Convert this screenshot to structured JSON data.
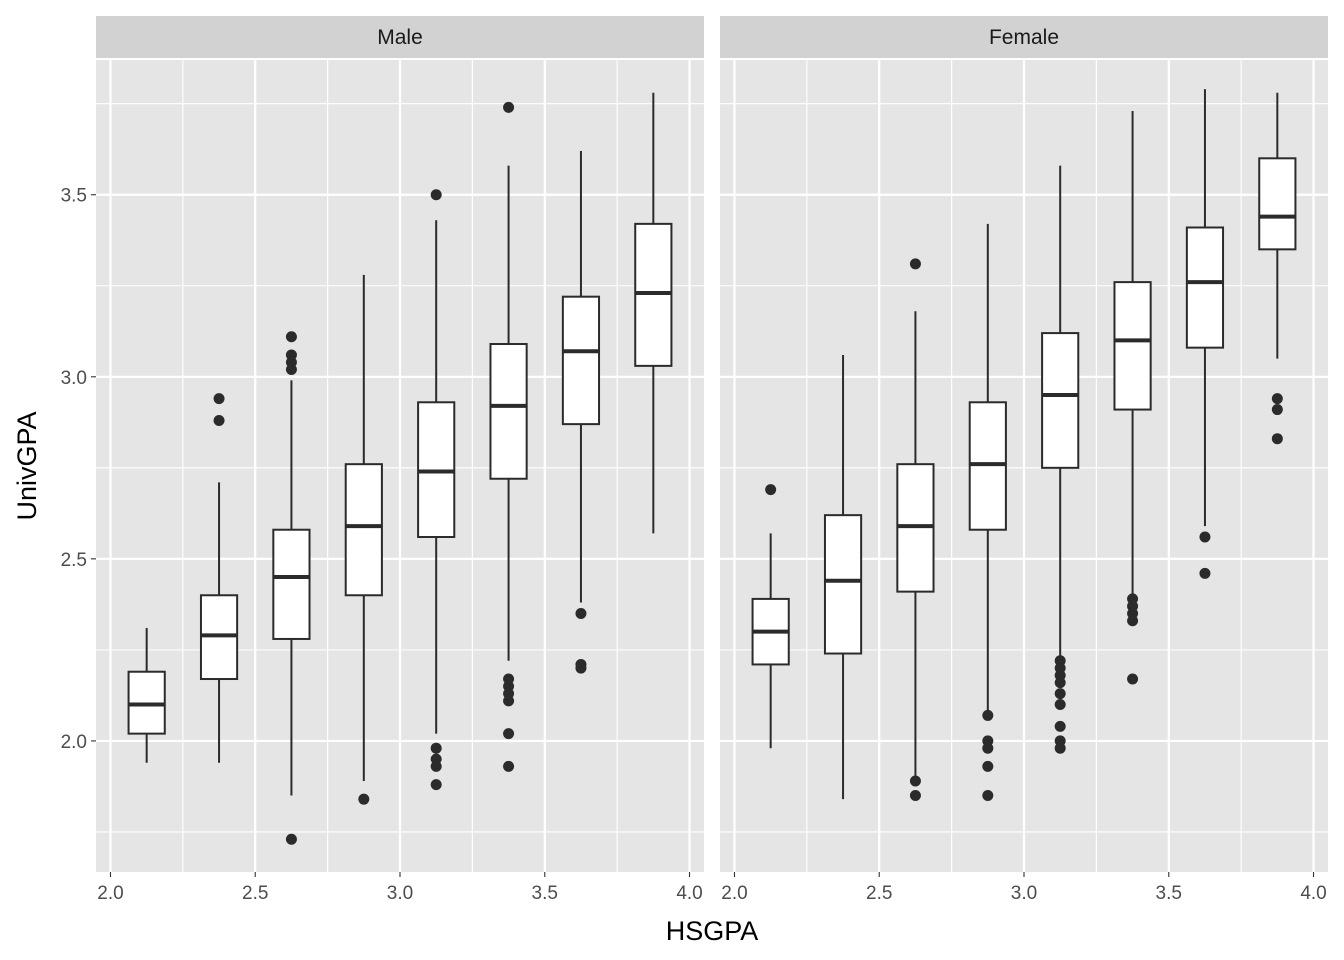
{
  "chart_data": {
    "type": "boxplot",
    "xlabel": "HSGPA",
    "ylabel": "UnivGPA",
    "xlim": [
      1.95,
      4.05
    ],
    "ylim": [
      1.64,
      3.87
    ],
    "x_ticks": [
      2.0,
      2.5,
      3.0,
      3.5,
      4.0
    ],
    "x_tick_labels": [
      "2.0",
      "2.5",
      "3.0",
      "3.5",
      "4.0"
    ],
    "y_ticks": [
      2.0,
      2.5,
      3.0,
      3.5
    ],
    "y_tick_labels": [
      "2.0",
      "2.5",
      "3.0",
      "3.5"
    ],
    "grid": true,
    "colors": {
      "panel_bg": "#e5e5e5",
      "strip_bg": "#d2d2d2",
      "grid": "#ffffff",
      "box_fill": "#ffffff",
      "box_line": "#2b2b2b"
    },
    "facets": [
      {
        "label": "Male",
        "boxes": [
          {
            "x": 2.125,
            "lower_whisker": 1.94,
            "q1": 2.02,
            "median": 2.1,
            "q3": 2.19,
            "upper_whisker": 2.31,
            "outliers": []
          },
          {
            "x": 2.375,
            "lower_whisker": 1.94,
            "q1": 2.17,
            "median": 2.29,
            "q3": 2.4,
            "upper_whisker": 2.71,
            "outliers": [
              2.94,
              2.88
            ]
          },
          {
            "x": 2.625,
            "lower_whisker": 1.85,
            "q1": 2.28,
            "median": 2.45,
            "q3": 2.58,
            "upper_whisker": 2.99,
            "outliers": [
              3.11,
              3.06,
              3.04,
              3.02,
              1.73
            ]
          },
          {
            "x": 2.875,
            "lower_whisker": 1.89,
            "q1": 2.4,
            "median": 2.59,
            "q3": 2.76,
            "upper_whisker": 3.28,
            "outliers": [
              1.84
            ]
          },
          {
            "x": 3.125,
            "lower_whisker": 2.02,
            "q1": 2.56,
            "median": 2.74,
            "q3": 2.93,
            "upper_whisker": 3.43,
            "outliers": [
              3.5,
              1.98,
              1.95,
              1.93,
              1.88
            ]
          },
          {
            "x": 3.375,
            "lower_whisker": 2.22,
            "q1": 2.72,
            "median": 2.92,
            "q3": 3.09,
            "upper_whisker": 3.58,
            "outliers": [
              3.74,
              2.17,
              2.15,
              2.13,
              2.11,
              2.02,
              1.93
            ]
          },
          {
            "x": 3.625,
            "lower_whisker": 2.38,
            "q1": 2.87,
            "median": 3.07,
            "q3": 3.22,
            "upper_whisker": 3.62,
            "outliers": [
              2.35,
              2.21,
              2.2
            ]
          },
          {
            "x": 3.875,
            "lower_whisker": 2.57,
            "q1": 3.03,
            "median": 3.23,
            "q3": 3.42,
            "upper_whisker": 3.78,
            "outliers": []
          }
        ]
      },
      {
        "label": "Female",
        "boxes": [
          {
            "x": 2.125,
            "lower_whisker": 1.98,
            "q1": 2.21,
            "median": 2.3,
            "q3": 2.39,
            "upper_whisker": 2.57,
            "outliers": [
              2.69
            ]
          },
          {
            "x": 2.375,
            "lower_whisker": 1.84,
            "q1": 2.24,
            "median": 2.44,
            "q3": 2.62,
            "upper_whisker": 3.06,
            "outliers": []
          },
          {
            "x": 2.625,
            "lower_whisker": 1.9,
            "q1": 2.41,
            "median": 2.59,
            "q3": 2.76,
            "upper_whisker": 3.18,
            "outliers": [
              3.31,
              1.89,
              1.85
            ]
          },
          {
            "x": 2.875,
            "lower_whisker": 2.08,
            "q1": 2.58,
            "median": 2.76,
            "q3": 2.93,
            "upper_whisker": 3.42,
            "outliers": [
              2.07,
              2.0,
              1.98,
              1.93,
              1.85
            ]
          },
          {
            "x": 3.125,
            "lower_whisker": 2.22,
            "q1": 2.75,
            "median": 2.95,
            "q3": 3.12,
            "upper_whisker": 3.58,
            "outliers": [
              2.22,
              2.2,
              2.18,
              2.16,
              2.13,
              2.1,
              2.04,
              2.0,
              1.98
            ]
          },
          {
            "x": 3.375,
            "lower_whisker": 2.4,
            "q1": 2.91,
            "median": 3.1,
            "q3": 3.26,
            "upper_whisker": 3.73,
            "outliers": [
              2.39,
              2.37,
              2.35,
              2.33,
              2.17
            ]
          },
          {
            "x": 3.625,
            "lower_whisker": 2.59,
            "q1": 3.08,
            "median": 3.26,
            "q3": 3.41,
            "upper_whisker": 3.79,
            "outliers": [
              2.56,
              2.46
            ]
          },
          {
            "x": 3.875,
            "lower_whisker": 3.05,
            "q1": 3.35,
            "median": 3.44,
            "q3": 3.6,
            "upper_whisker": 3.78,
            "outliers": [
              2.94,
              2.91,
              2.83
            ]
          }
        ]
      }
    ]
  }
}
